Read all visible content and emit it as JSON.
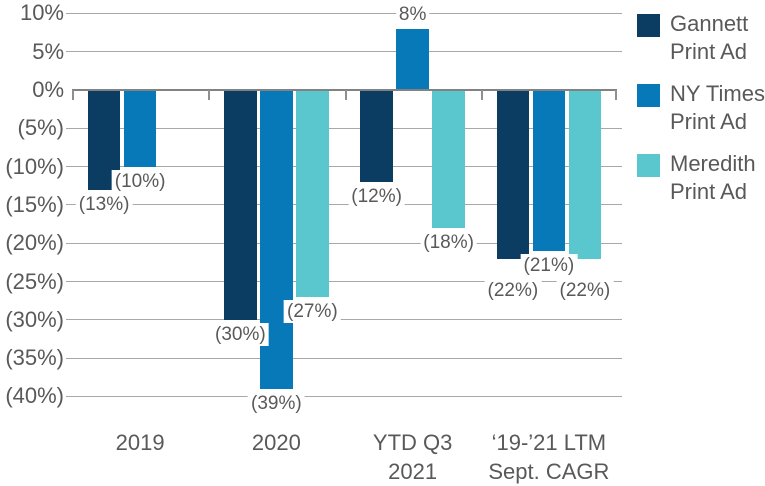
{
  "chart_data": {
    "type": "bar",
    "title": "",
    "unit": "percent",
    "categories": [
      {
        "lines": [
          "2019"
        ]
      },
      {
        "lines": [
          "2020"
        ]
      },
      {
        "lines": [
          "YTD Q3",
          "2021"
        ]
      },
      {
        "lines": [
          "‘19-’21 LTM",
          "Sept. CAGR"
        ]
      }
    ],
    "series": [
      {
        "name": "Gannett Print Ad",
        "color": "#0b3d62",
        "values": [
          -13,
          -30,
          -12,
          -22
        ],
        "labels": [
          "(13%)",
          "(30%)",
          "(12%)",
          "(22%)"
        ],
        "label_dy": [
          0,
          0,
          0,
          17
        ]
      },
      {
        "name": "NY Times Print Ad",
        "color": "#0778b8",
        "values": [
          -10,
          -39,
          8,
          -21
        ],
        "labels": [
          "(10%)",
          "(39%)",
          "8%",
          "(21%)"
        ],
        "label_dy": [
          0,
          0,
          0,
          0
        ]
      },
      {
        "name": "Meredith Print Ad",
        "color": "#5ac6ce",
        "values": [
          null,
          -27,
          -18,
          -22
        ],
        "labels": [
          null,
          "(27%)",
          "(18%)",
          "(22%)"
        ],
        "label_dy": [
          0,
          0,
          0,
          17
        ]
      }
    ],
    "y_axis": {
      "min": -40,
      "max": 10,
      "step": 5,
      "ticks": [
        {
          "value": 10,
          "label": "10%"
        },
        {
          "value": 5,
          "label": "5%"
        },
        {
          "value": 0,
          "label": "0%"
        },
        {
          "value": -5,
          "label": "(5%)"
        },
        {
          "value": -10,
          "label": "(10%)"
        },
        {
          "value": -15,
          "label": "(15%)"
        },
        {
          "value": -20,
          "label": "(20%)"
        },
        {
          "value": -25,
          "label": "(25%)"
        },
        {
          "value": -30,
          "label": "(30%)"
        },
        {
          "value": -35,
          "label": "(35%)"
        },
        {
          "value": -40,
          "label": "(40%)"
        }
      ]
    },
    "grid": true,
    "legend": {
      "position": "right",
      "items": [
        {
          "label_lines": [
            "Gannett",
            "Print Ad"
          ],
          "color": "#0b3d62"
        },
        {
          "label_lines": [
            "NY Times",
            "Print Ad"
          ],
          "color": "#0778b8"
        },
        {
          "label_lines": [
            "Meredith",
            "Print Ad"
          ],
          "color": "#5ac6ce"
        }
      ]
    },
    "colors": {
      "gridline": "#a8a8a8",
      "zero_axis": "#828282",
      "text": "#595959",
      "background": "#ffffff"
    }
  }
}
